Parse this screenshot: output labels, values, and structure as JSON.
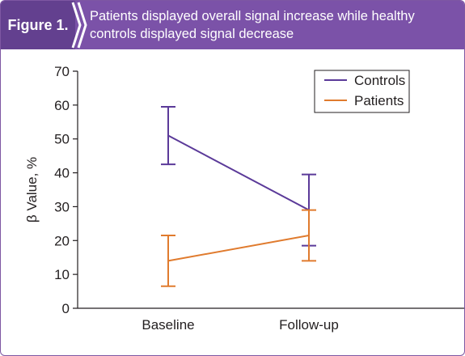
{
  "header": {
    "figure_label": "Figure 1.",
    "title_line1": "Patients displayed overall signal increase while healthy",
    "title_line2": "controls displayed signal decrease"
  },
  "colors": {
    "header_bg": "#7b52a8",
    "label_bg": "#63408f",
    "controls": "#5b3a99",
    "patients": "#e07b2e"
  },
  "chart_data": {
    "type": "line",
    "categories": [
      "Baseline",
      "Follow-up"
    ],
    "ylabel": "β Value, %",
    "ylim": [
      0,
      70
    ],
    "yticks": [
      0,
      10,
      20,
      30,
      40,
      50,
      60,
      70
    ],
    "grid": false,
    "legend_position": "top-right",
    "series": [
      {
        "name": "Controls",
        "color": "#5b3a99",
        "values": [
          51,
          29
        ],
        "err_low": [
          42.5,
          18.5
        ],
        "err_high": [
          59.5,
          39.5
        ]
      },
      {
        "name": "Patients",
        "color": "#e07b2e",
        "values": [
          14,
          21.5
        ],
        "err_low": [
          6.5,
          14
        ],
        "err_high": [
          21.5,
          29
        ]
      }
    ]
  }
}
